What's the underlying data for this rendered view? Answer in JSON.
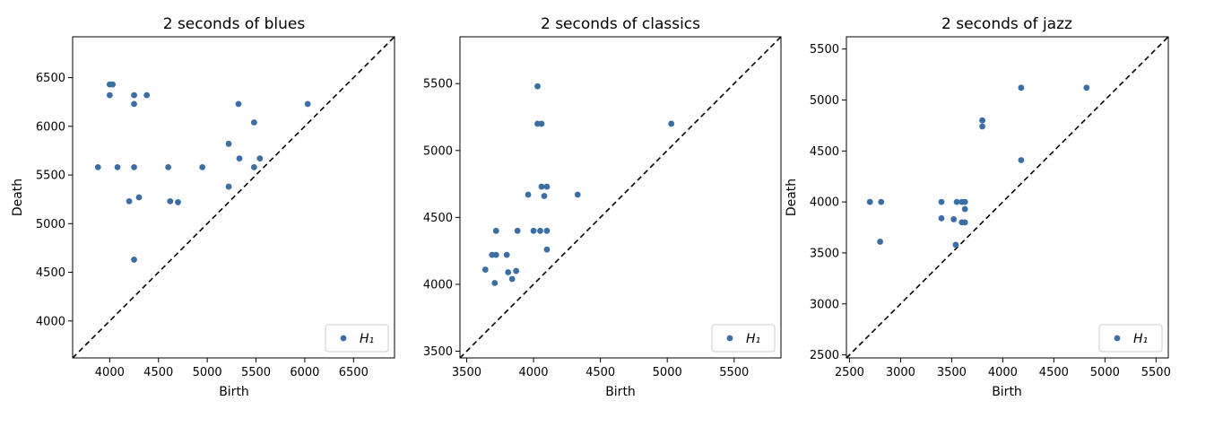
{
  "chart_data": [
    {
      "type": "scatter",
      "title": "2 seconds of blues",
      "xlabel": "Birth",
      "ylabel": "Death",
      "xlim": [
        3620,
        6920
      ],
      "ylim": [
        3620,
        6920
      ],
      "xticks": [
        4000,
        4500,
        5000,
        5500,
        6000,
        6500
      ],
      "yticks": [
        4000,
        4500,
        5000,
        5500,
        6000,
        6500
      ],
      "diagonal": true,
      "legend_position": "lower-right",
      "series": [
        {
          "name": "H₁",
          "color": "#3b6ea5",
          "points": [
            [
              3880,
              5580
            ],
            [
              4000,
              6430
            ],
            [
              4030,
              6430
            ],
            [
              4000,
              6320
            ],
            [
              4080,
              5580
            ],
            [
              4200,
              5230
            ],
            [
              4250,
              6320
            ],
            [
              4250,
              6230
            ],
            [
              4250,
              5580
            ],
            [
              4250,
              4630
            ],
            [
              4300,
              5270
            ],
            [
              4380,
              6320
            ],
            [
              4600,
              5580
            ],
            [
              4620,
              5230
            ],
            [
              4700,
              5220
            ],
            [
              4950,
              5580
            ],
            [
              5220,
              5820
            ],
            [
              5220,
              5380
            ],
            [
              5320,
              6230
            ],
            [
              5330,
              5670
            ],
            [
              5480,
              6040
            ],
            [
              5480,
              5580
            ],
            [
              5540,
              5670
            ],
            [
              6030,
              6230
            ]
          ]
        }
      ]
    },
    {
      "type": "scatter",
      "title": "2 seconds of classics",
      "xlabel": "Birth",
      "ylabel": "",
      "xlim": [
        3450,
        5850
      ],
      "ylim": [
        3450,
        5850
      ],
      "xticks": [
        3500,
        4000,
        4500,
        5000,
        5500
      ],
      "yticks": [
        3500,
        4000,
        4500,
        5000,
        5500
      ],
      "diagonal": true,
      "legend_position": "lower-right",
      "series": [
        {
          "name": "H₁",
          "color": "#3b6ea5",
          "points": [
            [
              3640,
              4110
            ],
            [
              3690,
              4220
            ],
            [
              3720,
              4220
            ],
            [
              3710,
              4010
            ],
            [
              3720,
              4400
            ],
            [
              3800,
              4220
            ],
            [
              3810,
              4090
            ],
            [
              3840,
              4040
            ],
            [
              3870,
              4100
            ],
            [
              3880,
              4400
            ],
            [
              3960,
              4670
            ],
            [
              4000,
              4400
            ],
            [
              4030,
              5480
            ],
            [
              4030,
              5200
            ],
            [
              4060,
              5200
            ],
            [
              4050,
              4400
            ],
            [
              4060,
              4730
            ],
            [
              4080,
              4660
            ],
            [
              4100,
              4730
            ],
            [
              4100,
              4400
            ],
            [
              4100,
              4260
            ],
            [
              4330,
              4670
            ],
            [
              5030,
              5200
            ]
          ]
        }
      ]
    },
    {
      "type": "scatter",
      "title": "2 seconds of jazz",
      "xlabel": "Birth",
      "ylabel": "Death",
      "xlim": [
        2470,
        5620
      ],
      "ylim": [
        2470,
        5620
      ],
      "xticks": [
        2500,
        3000,
        3500,
        4000,
        4500,
        5000,
        5500
      ],
      "yticks": [
        2500,
        3000,
        3500,
        4000,
        4500,
        5000,
        5500
      ],
      "diagonal": true,
      "legend_position": "lower-right",
      "series": [
        {
          "name": "H₁",
          "color": "#3b6ea5",
          "points": [
            [
              2700,
              4000
            ],
            [
              2810,
              4000
            ],
            [
              2800,
              3610
            ],
            [
              3400,
              4000
            ],
            [
              3400,
              3840
            ],
            [
              3520,
              3830
            ],
            [
              3550,
              4000
            ],
            [
              3540,
              3580
            ],
            [
              3600,
              4000
            ],
            [
              3600,
              3800
            ],
            [
              3630,
              4000
            ],
            [
              3630,
              3930
            ],
            [
              3630,
              3800
            ],
            [
              3800,
              4800
            ],
            [
              3800,
              4740
            ],
            [
              4180,
              5120
            ],
            [
              4180,
              4410
            ],
            [
              4820,
              5120
            ]
          ]
        }
      ]
    }
  ]
}
